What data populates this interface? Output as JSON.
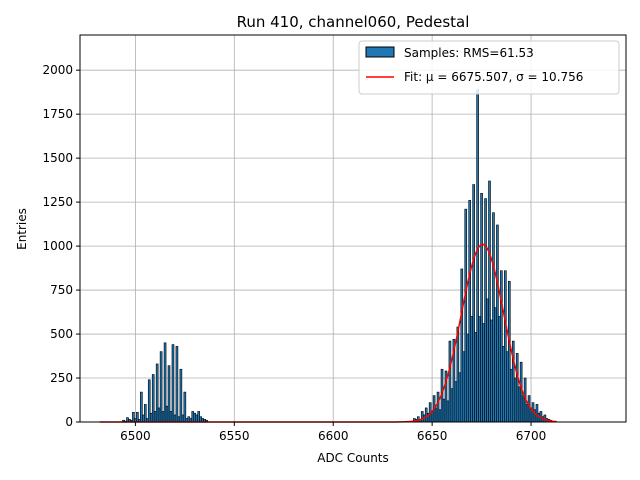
{
  "chart_data": {
    "type": "bar",
    "title": "Run 410, channel060, Pedestal",
    "xlabel": "ADC Counts",
    "ylabel": "Entries",
    "xlim": [
      6472,
      6748
    ],
    "ylim": [
      0,
      2200
    ],
    "xticks": [
      6500,
      6550,
      6600,
      6650,
      6700
    ],
    "yticks": [
      0,
      250,
      500,
      750,
      1000,
      1250,
      1500,
      1750,
      2000
    ],
    "grid": true,
    "legend_position": "top-right",
    "colors": {
      "bar_fill": "#1f77b4",
      "bar_edge": "#000000",
      "fit_line": "#ff0000",
      "grid": "#b0b0b0"
    },
    "series": [
      {
        "name": "Samples: RMS=61.53",
        "kind": "histogram",
        "bins": [
          [
            6494,
            10
          ],
          [
            6495,
            5
          ],
          [
            6496,
            25
          ],
          [
            6497,
            15
          ],
          [
            6498,
            10
          ],
          [
            6499,
            55
          ],
          [
            6500,
            20
          ],
          [
            6501,
            55
          ],
          [
            6502,
            15
          ],
          [
            6503,
            170
          ],
          [
            6504,
            40
          ],
          [
            6505,
            100
          ],
          [
            6506,
            20
          ],
          [
            6507,
            240
          ],
          [
            6508,
            50
          ],
          [
            6509,
            270
          ],
          [
            6510,
            60
          ],
          [
            6511,
            330
          ],
          [
            6512,
            80
          ],
          [
            6513,
            400
          ],
          [
            6514,
            60
          ],
          [
            6515,
            450
          ],
          [
            6516,
            90
          ],
          [
            6517,
            320
          ],
          [
            6518,
            60
          ],
          [
            6519,
            440
          ],
          [
            6520,
            40
          ],
          [
            6521,
            430
          ],
          [
            6522,
            30
          ],
          [
            6523,
            300
          ],
          [
            6524,
            40
          ],
          [
            6525,
            170
          ],
          [
            6526,
            20
          ],
          [
            6527,
            30
          ],
          [
            6528,
            20
          ],
          [
            6529,
            60
          ],
          [
            6530,
            50
          ],
          [
            6531,
            40
          ],
          [
            6532,
            60
          ],
          [
            6533,
            30
          ],
          [
            6534,
            20
          ],
          [
            6535,
            15
          ],
          [
            6536,
            10
          ],
          [
            6641,
            20
          ],
          [
            6642,
            15
          ],
          [
            6643,
            30
          ],
          [
            6644,
            15
          ],
          [
            6645,
            60
          ],
          [
            6646,
            40
          ],
          [
            6647,
            80
          ],
          [
            6648,
            50
          ],
          [
            6649,
            110
          ],
          [
            6650,
            60
          ],
          [
            6651,
            150
          ],
          [
            6652,
            80
          ],
          [
            6653,
            170
          ],
          [
            6654,
            70
          ],
          [
            6655,
            300
          ],
          [
            6656,
            130
          ],
          [
            6657,
            290
          ],
          [
            6658,
            120
          ],
          [
            6659,
            460
          ],
          [
            6660,
            190
          ],
          [
            6661,
            470
          ],
          [
            6662,
            230
          ],
          [
            6663,
            540
          ],
          [
            6664,
            280
          ],
          [
            6665,
            870
          ],
          [
            6666,
            400
          ],
          [
            6667,
            1210
          ],
          [
            6668,
            500
          ],
          [
            6669,
            1260
          ],
          [
            6670,
            600
          ],
          [
            6671,
            1350
          ],
          [
            6672,
            510
          ],
          [
            6673,
            1890
          ],
          [
            6674,
            600
          ],
          [
            6675,
            1300
          ],
          [
            6676,
            560
          ],
          [
            6677,
            1270
          ],
          [
            6678,
            700
          ],
          [
            6679,
            1370
          ],
          [
            6680,
            580
          ],
          [
            6681,
            1190
          ],
          [
            6682,
            650
          ],
          [
            6683,
            1120
          ],
          [
            6684,
            600
          ],
          [
            6685,
            860
          ],
          [
            6686,
            430
          ],
          [
            6687,
            860
          ],
          [
            6688,
            400
          ],
          [
            6689,
            800
          ],
          [
            6690,
            300
          ],
          [
            6691,
            460
          ],
          [
            6692,
            250
          ],
          [
            6693,
            390
          ],
          [
            6694,
            200
          ],
          [
            6695,
            340
          ],
          [
            6696,
            150
          ],
          [
            6697,
            250
          ],
          [
            6698,
            100
          ],
          [
            6699,
            150
          ],
          [
            6700,
            80
          ],
          [
            6701,
            110
          ],
          [
            6702,
            70
          ],
          [
            6703,
            100
          ],
          [
            6704,
            50
          ],
          [
            6705,
            60
          ],
          [
            6706,
            30
          ],
          [
            6707,
            40
          ],
          [
            6708,
            20
          ],
          [
            6709,
            15
          ],
          [
            6710,
            10
          ]
        ]
      },
      {
        "name": "Fit: μ = 6675.507, σ = 10.756",
        "kind": "gaussian",
        "mu": 6675.507,
        "sigma": 10.756,
        "amplitude": 1010,
        "x_range": [
          6482,
          6713
        ]
      }
    ]
  }
}
